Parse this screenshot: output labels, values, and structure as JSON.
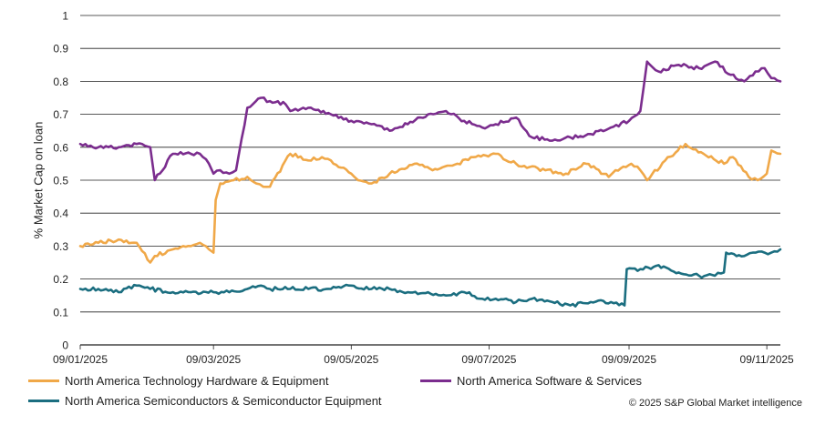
{
  "chart_data": {
    "type": "line",
    "ylabel": "% Market Cap on loan",
    "ylim": [
      0,
      1
    ],
    "yticks": [
      0,
      0.1,
      0.2,
      0.3,
      0.4,
      0.5,
      0.6,
      0.7,
      0.8,
      0.9,
      1
    ],
    "ytick_labels": [
      "0",
      "0.1",
      "0.2",
      "0.3",
      "0.4",
      "0.5",
      "0.6",
      "0.7",
      "0.8",
      "0.9",
      "1"
    ],
    "xlim": [
      "2025-01-09",
      "2025-11-15"
    ],
    "xticks": [
      "2025-01-09",
      "2025-03-09",
      "2025-05-09",
      "2025-07-09",
      "2025-09-09",
      "2025-11-09"
    ],
    "xtick_labels": [
      "09/01/2025",
      "09/03/2025",
      "09/05/2025",
      "09/07/2025",
      "09/09/2025",
      "09/11/2025"
    ],
    "grid": true,
    "legend_position": "bottom",
    "series": [
      {
        "name": "North America Technology Hardware & Equipment",
        "color": "#F0A848",
        "x": [
          "2025-01-09",
          "2025-01-17",
          "2025-01-26",
          "2025-02-03",
          "2025-02-09",
          "2025-02-11",
          "2025-02-19",
          "2025-02-27",
          "2025-03-03",
          "2025-03-07",
          "2025-03-09",
          "2025-03-10",
          "2025-03-12",
          "2025-03-18",
          "2025-03-24",
          "2025-03-28",
          "2025-03-31",
          "2025-04-03",
          "2025-04-12",
          "2025-04-20",
          "2025-04-26",
          "2025-04-30",
          "2025-05-09",
          "2025-05-12",
          "2025-05-18",
          "2025-05-26",
          "2025-06-06",
          "2025-06-14",
          "2025-06-25",
          "2025-07-01",
          "2025-07-12",
          "2025-07-21",
          "2025-07-27",
          "2025-08-03",
          "2025-08-12",
          "2025-08-21",
          "2025-08-31",
          "2025-09-03",
          "2025-09-10",
          "2025-09-14",
          "2025-09-17",
          "2025-09-25",
          "2025-10-04",
          "2025-10-12",
          "2025-10-21",
          "2025-10-25",
          "2025-11-01",
          "2025-11-05",
          "2025-11-09",
          "2025-11-11",
          "2025-11-15"
        ],
        "y": [
          0.3,
          0.31,
          0.32,
          0.31,
          0.25,
          0.27,
          0.29,
          0.3,
          0.31,
          0.29,
          0.28,
          0.44,
          0.49,
          0.5,
          0.51,
          0.49,
          0.48,
          0.48,
          0.58,
          0.56,
          0.57,
          0.56,
          0.52,
          0.5,
          0.49,
          0.52,
          0.55,
          0.53,
          0.55,
          0.57,
          0.58,
          0.55,
          0.54,
          0.53,
          0.52,
          0.55,
          0.51,
          0.53,
          0.55,
          0.53,
          0.5,
          0.56,
          0.61,
          0.58,
          0.55,
          0.57,
          0.51,
          0.5,
          0.52,
          0.59,
          0.58
        ]
      },
      {
        "name": "North America Software & Services",
        "color": "#7B2D8E",
        "x": [
          "2025-01-09",
          "2025-01-17",
          "2025-01-26",
          "2025-02-03",
          "2025-02-09",
          "2025-02-11",
          "2025-02-19",
          "2025-02-27",
          "2025-03-03",
          "2025-03-07",
          "2025-03-09",
          "2025-03-12",
          "2025-03-16",
          "2025-03-19",
          "2025-03-24",
          "2025-03-30",
          "2025-04-03",
          "2025-04-10",
          "2025-04-12",
          "2025-04-20",
          "2025-04-30",
          "2025-05-09",
          "2025-05-18",
          "2025-05-26",
          "2025-06-03",
          "2025-06-12",
          "2025-06-20",
          "2025-06-28",
          "2025-07-06",
          "2025-07-12",
          "2025-07-21",
          "2025-07-28",
          "2025-08-06",
          "2025-08-14",
          "2025-08-23",
          "2025-09-01",
          "2025-09-09",
          "2025-09-14",
          "2025-09-17",
          "2025-09-22",
          "2025-10-01",
          "2025-10-10",
          "2025-10-17",
          "2025-10-24",
          "2025-10-30",
          "2025-11-04",
          "2025-11-08",
          "2025-11-11",
          "2025-11-15"
        ],
        "y": [
          0.61,
          0.6,
          0.6,
          0.61,
          0.6,
          0.5,
          0.58,
          0.58,
          0.58,
          0.55,
          0.52,
          0.53,
          0.52,
          0.53,
          0.72,
          0.75,
          0.74,
          0.73,
          0.71,
          0.72,
          0.7,
          0.68,
          0.67,
          0.65,
          0.67,
          0.7,
          0.71,
          0.68,
          0.66,
          0.67,
          0.69,
          0.63,
          0.62,
          0.63,
          0.64,
          0.66,
          0.68,
          0.71,
          0.86,
          0.83,
          0.85,
          0.84,
          0.86,
          0.82,
          0.8,
          0.83,
          0.84,
          0.81,
          0.8
        ]
      },
      {
        "name": "North America Semiconductors & Semiconductor Equipment",
        "color": "#1B6E80",
        "x": [
          "2025-01-09",
          "2025-01-17",
          "2025-01-26",
          "2025-02-03",
          "2025-02-09",
          "2025-02-19",
          "2025-02-27",
          "2025-03-09",
          "2025-03-16",
          "2025-03-24",
          "2025-03-30",
          "2025-04-03",
          "2025-04-12",
          "2025-04-20",
          "2025-04-30",
          "2025-05-09",
          "2025-05-18",
          "2025-05-26",
          "2025-06-03",
          "2025-06-12",
          "2025-06-20",
          "2025-06-28",
          "2025-07-06",
          "2025-07-12",
          "2025-07-21",
          "2025-07-28",
          "2025-08-06",
          "2025-08-14",
          "2025-08-23",
          "2025-09-01",
          "2025-09-07",
          "2025-09-08",
          "2025-09-14",
          "2025-09-21",
          "2025-10-01",
          "2025-10-10",
          "2025-10-17",
          "2025-10-21",
          "2025-10-22",
          "2025-10-30",
          "2025-11-04",
          "2025-11-08",
          "2025-11-11",
          "2025-11-15"
        ],
        "y": [
          0.17,
          0.17,
          0.16,
          0.18,
          0.17,
          0.16,
          0.16,
          0.16,
          0.16,
          0.17,
          0.18,
          0.17,
          0.17,
          0.17,
          0.17,
          0.18,
          0.17,
          0.17,
          0.16,
          0.16,
          0.15,
          0.16,
          0.14,
          0.14,
          0.13,
          0.14,
          0.13,
          0.12,
          0.13,
          0.13,
          0.12,
          0.23,
          0.23,
          0.24,
          0.22,
          0.21,
          0.21,
          0.22,
          0.28,
          0.27,
          0.28,
          0.28,
          0.28,
          0.29
        ]
      }
    ]
  },
  "copyright": "© 2025 S&P Global Market intelligence"
}
